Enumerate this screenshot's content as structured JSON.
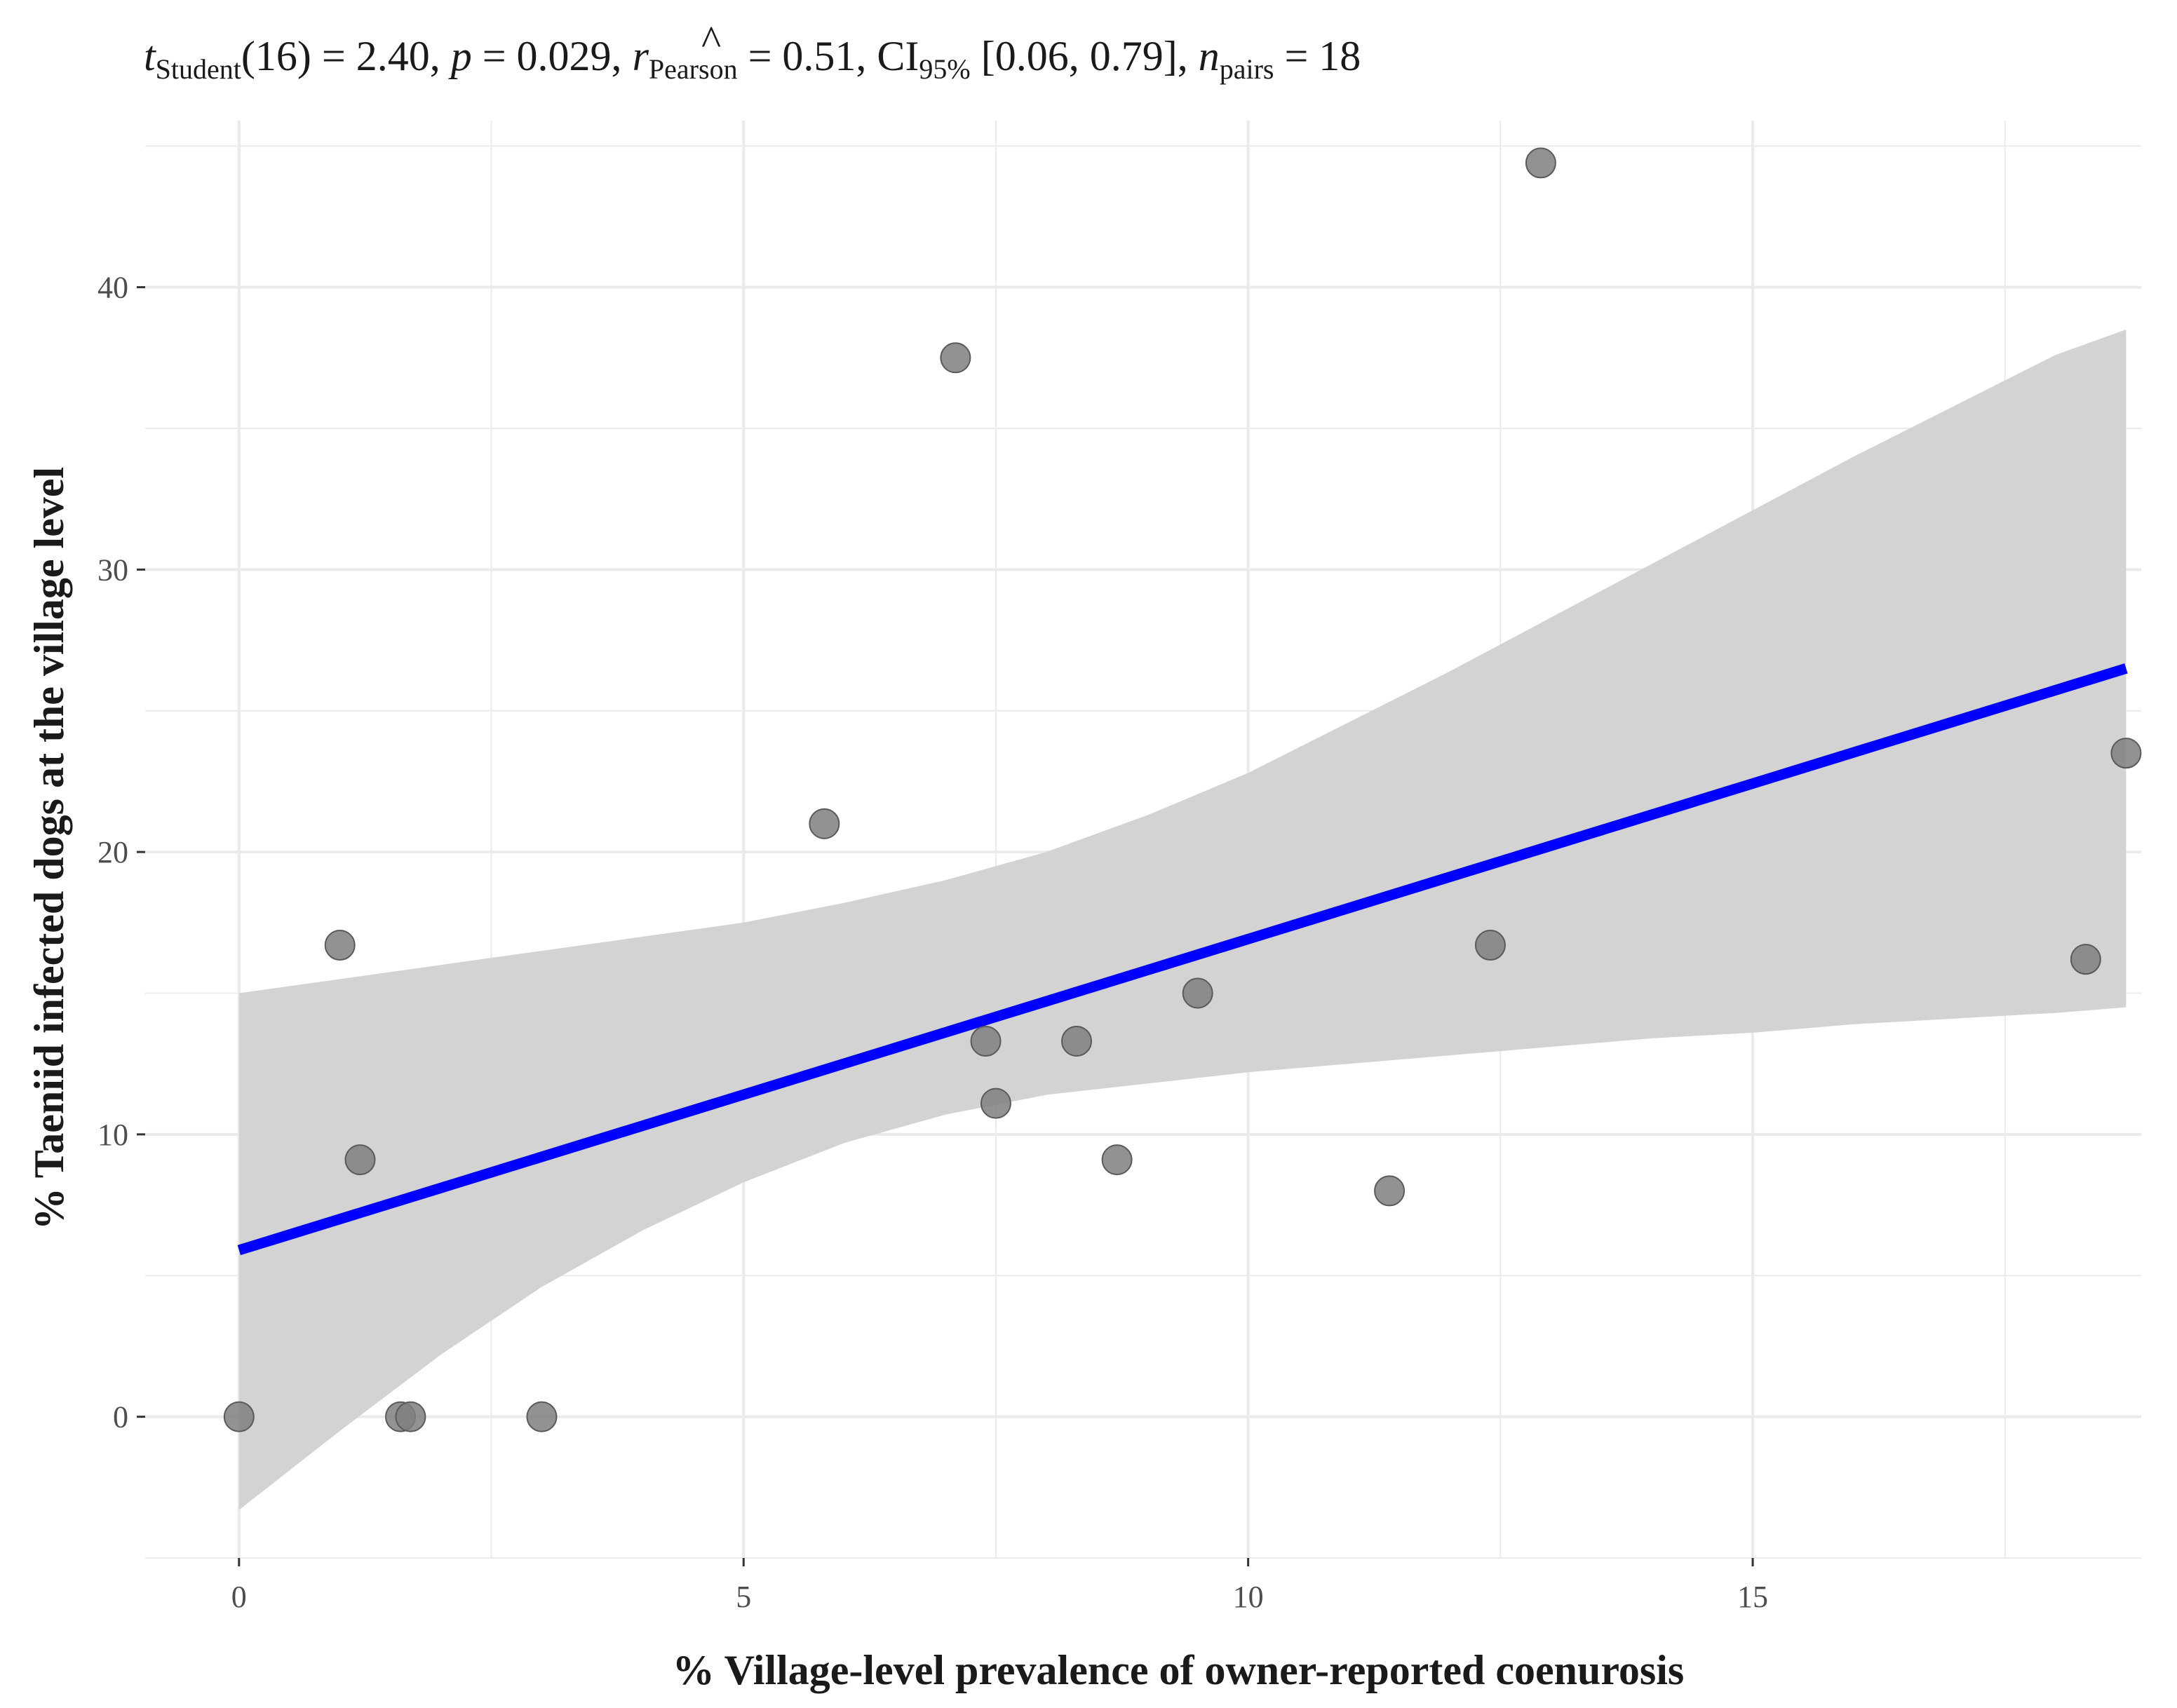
{
  "chart_data": {
    "type": "scatter",
    "subtitle": {
      "t_label": "t",
      "t_sub": "Student",
      "t_value": "(16) = 2.40, ",
      "p_label": "p",
      "p_value": " = 0.029, ",
      "r_label": "r",
      "r_hat": "^",
      "r_sub": "Pearson",
      "r_value": " = 0.51, CI",
      "ci_sub": "95%",
      "ci_value": " [0.06, 0.79], ",
      "n_label": "n",
      "n_sub": "pairs",
      "n_value": " = 18"
    },
    "xlabel": "% Village-level prevalence of owner-reported coenurosis",
    "ylabel": "% Taeniid infected dogs at the village level",
    "xlim": [
      -0.93,
      18.85
    ],
    "ylim": [
      -5,
      45.9
    ],
    "x_ticks": [
      0,
      5,
      10,
      15
    ],
    "x_tick_labels": [
      "0",
      "5",
      "10",
      "15"
    ],
    "x_minor_ticks": [
      2.5,
      7.5,
      12.5,
      17.5
    ],
    "y_ticks": [
      0,
      10,
      20,
      30,
      40
    ],
    "y_tick_labels": [
      "0",
      "10",
      "20",
      "30",
      "40"
    ],
    "y_minor_ticks": [
      -5,
      5,
      15,
      25,
      35,
      45
    ],
    "grid": true,
    "points": {
      "x": [
        0,
        1.6,
        1.7,
        3.0,
        1.0,
        1.2,
        5.8,
        7.1,
        7.4,
        7.5,
        8.3,
        8.7,
        9.5,
        11.4,
        12.4,
        12.9,
        18.3,
        18.7
      ],
      "y": [
        0,
        0,
        0,
        0,
        16.7,
        9.1,
        21.0,
        37.5,
        13.3,
        11.1,
        13.3,
        9.1,
        15.0,
        8.0,
        16.7,
        44.4,
        16.2,
        23.5
      ]
    },
    "regression_line": {
      "x": [
        0,
        18.7
      ],
      "y": [
        5.9,
        26.5
      ]
    },
    "confidence_band": {
      "x": [
        0,
        1,
        2,
        3,
        4,
        5,
        6,
        7,
        8,
        9,
        10,
        11,
        12,
        13,
        14,
        15,
        16,
        17,
        18,
        18.7
      ],
      "lower": [
        -3.3,
        -0.5,
        2.2,
        4.6,
        6.6,
        8.3,
        9.7,
        10.7,
        11.4,
        11.8,
        12.2,
        12.5,
        12.8,
        13.1,
        13.4,
        13.6,
        13.9,
        14.1,
        14.3,
        14.5
      ],
      "upper": [
        15.0,
        15.5,
        16.0,
        16.5,
        17.0,
        17.5,
        18.2,
        19.0,
        20.0,
        21.3,
        22.8,
        24.6,
        26.4,
        28.3,
        30.2,
        32.1,
        34.0,
        35.8,
        37.6,
        38.5
      ]
    },
    "colors": {
      "line": "#0000ff",
      "band": "#d3d3d3",
      "point": "#7f7f7f",
      "point_stroke": "#5a5a5a",
      "grid": "#ebebeb"
    }
  }
}
